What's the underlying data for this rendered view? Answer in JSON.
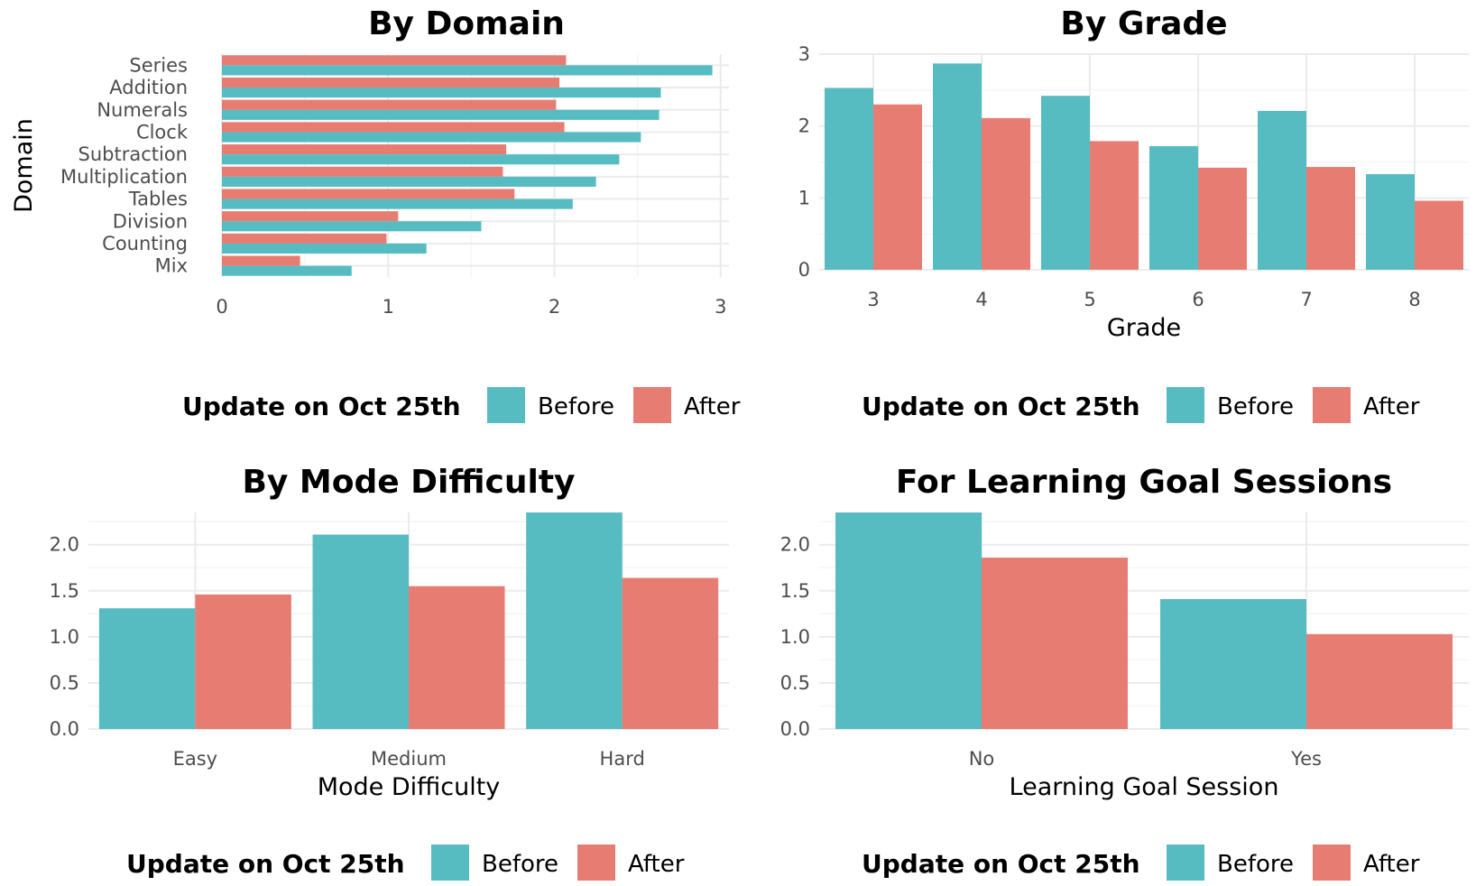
{
  "colors": {
    "before": "#56BCC2",
    "after": "#E77D72",
    "grid_major": "#EBEBEB",
    "grid_minor": "#F5F5F5"
  },
  "legend": {
    "title": "Update on Oct 25th",
    "items": [
      "Before",
      "After"
    ]
  },
  "chart_data": [
    {
      "type": "bar",
      "orientation": "horizontal",
      "title": "By Domain",
      "xlabel": "",
      "ylabel": "Domain",
      "categories": [
        "Series",
        "Addition",
        "Numerals",
        "Clock",
        "Subtraction",
        "Multiplication",
        "Tables",
        "Division",
        "Counting",
        "Mix"
      ],
      "series": [
        {
          "name": "Before",
          "values": [
            2.95,
            2.64,
            2.63,
            2.52,
            2.39,
            2.25,
            2.11,
            1.56,
            1.23,
            0.78
          ]
        },
        {
          "name": "After",
          "values": [
            2.07,
            2.03,
            2.01,
            2.06,
            1.71,
            1.69,
            1.76,
            1.06,
            0.99,
            0.47
          ]
        }
      ],
      "xlim": [
        0,
        3.05
      ],
      "xticks": [
        "0",
        "1",
        "2",
        "3"
      ],
      "grid": true,
      "legend_position": "bottom"
    },
    {
      "type": "bar",
      "title": "By Grade",
      "xlabel": "Grade",
      "ylabel": "",
      "categories": [
        "3",
        "4",
        "5",
        "6",
        "7",
        "8"
      ],
      "series": [
        {
          "name": "Before",
          "values": [
            2.53,
            2.87,
            2.42,
            1.72,
            2.21,
            1.33
          ]
        },
        {
          "name": "After",
          "values": [
            2.3,
            2.11,
            1.79,
            1.42,
            1.43,
            0.96
          ]
        }
      ],
      "ylim": [
        0,
        3.0
      ],
      "yticks": [
        "0",
        "1",
        "2",
        "3"
      ],
      "grid": true,
      "legend_position": "bottom"
    },
    {
      "type": "bar",
      "title": "By Mode Difficulty",
      "xlabel": "Mode Difficulty",
      "ylabel": "",
      "categories": [
        "Easy",
        "Medium",
        "Hard"
      ],
      "series": [
        {
          "name": "Before",
          "values": [
            1.31,
            2.11,
            2.35
          ]
        },
        {
          "name": "After",
          "values": [
            1.46,
            1.55,
            1.64
          ]
        }
      ],
      "ylim": [
        0,
        2.35
      ],
      "yticks": [
        "0.0",
        "0.5",
        "1.0",
        "1.5",
        "2.0"
      ],
      "grid": true,
      "legend_position": "bottom"
    },
    {
      "type": "bar",
      "title": "For Learning Goal Sessions",
      "xlabel": "Learning Goal Session",
      "ylabel": "",
      "categories": [
        "No",
        "Yes"
      ],
      "series": [
        {
          "name": "Before",
          "values": [
            2.35,
            1.41
          ]
        },
        {
          "name": "After",
          "values": [
            1.86,
            1.03
          ]
        }
      ],
      "ylim": [
        0,
        2.35
      ],
      "yticks": [
        "0.0",
        "0.5",
        "1.0",
        "1.5",
        "2.0"
      ],
      "grid": true,
      "legend_position": "bottom"
    }
  ]
}
